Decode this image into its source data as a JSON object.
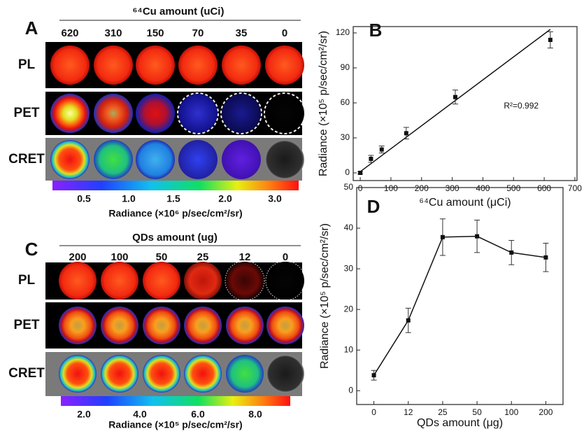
{
  "panels": [
    {
      "label": "A",
      "title": "⁶⁴Cu amount (uCi)",
      "columns": [
        "620",
        "310",
        "150",
        "70",
        "35",
        "0"
      ],
      "rows": [
        "PL",
        "PET",
        "CRET"
      ],
      "colorbar": {
        "ticks": [
          "0.5",
          "1.0",
          "1.5",
          "2.0",
          "3.0"
        ],
        "label": "Radiance (×10⁶ p/sec/cm²/sr)"
      }
    },
    {
      "label": "C",
      "title": "QDs amount (ug)",
      "columns": [
        "200",
        "100",
        "50",
        "25",
        "12",
        "0"
      ],
      "rows": [
        "PL",
        "PET",
        "CRET"
      ],
      "colorbar": {
        "ticks": [
          "2.0",
          "4.0",
          "6.0",
          "8.0"
        ],
        "label": "Radiance (×10⁵ p/sec/cm²/sr)"
      }
    }
  ],
  "chart_data": [
    {
      "type": "scatter",
      "label": "B",
      "xlabel": "⁶⁴Cu amount (μCi)",
      "ylabel": "Radiance (×10⁵ p/sec/cm²/sr)",
      "x": [
        0,
        35,
        70,
        150,
        310,
        620
      ],
      "values": [
        0,
        12,
        20,
        34,
        65,
        114
      ],
      "errors": [
        1,
        3,
        3,
        5,
        6,
        7
      ],
      "fit_line": {
        "x": [
          0,
          620
        ],
        "values": [
          1,
          123
        ]
      },
      "annotation": "R²=0.992",
      "xlim": [
        -23,
        707
      ],
      "ylim": [
        -6.6,
        125.4
      ],
      "xticks": [
        0,
        100,
        200,
        300,
        400,
        500,
        600,
        700
      ],
      "yticks": [
        0,
        30,
        60,
        90,
        120
      ],
      "color": "#111111"
    },
    {
      "type": "line",
      "label": "D",
      "xlabel": "QDs amount (μg)",
      "ylabel": "Radiance (×10⁵ p/sec/cm²/sr)",
      "categories": [
        "0",
        "12",
        "25",
        "50",
        "100",
        "200"
      ],
      "values": [
        3.8,
        17.3,
        37.8,
        38,
        34,
        32.8
      ],
      "errors": [
        1.2,
        3,
        4.5,
        4,
        3,
        3.5
      ],
      "ylim": [
        -3.4,
        50
      ],
      "yticks": [
        0,
        10,
        20,
        30,
        40,
        50
      ],
      "color": "#111111"
    }
  ]
}
